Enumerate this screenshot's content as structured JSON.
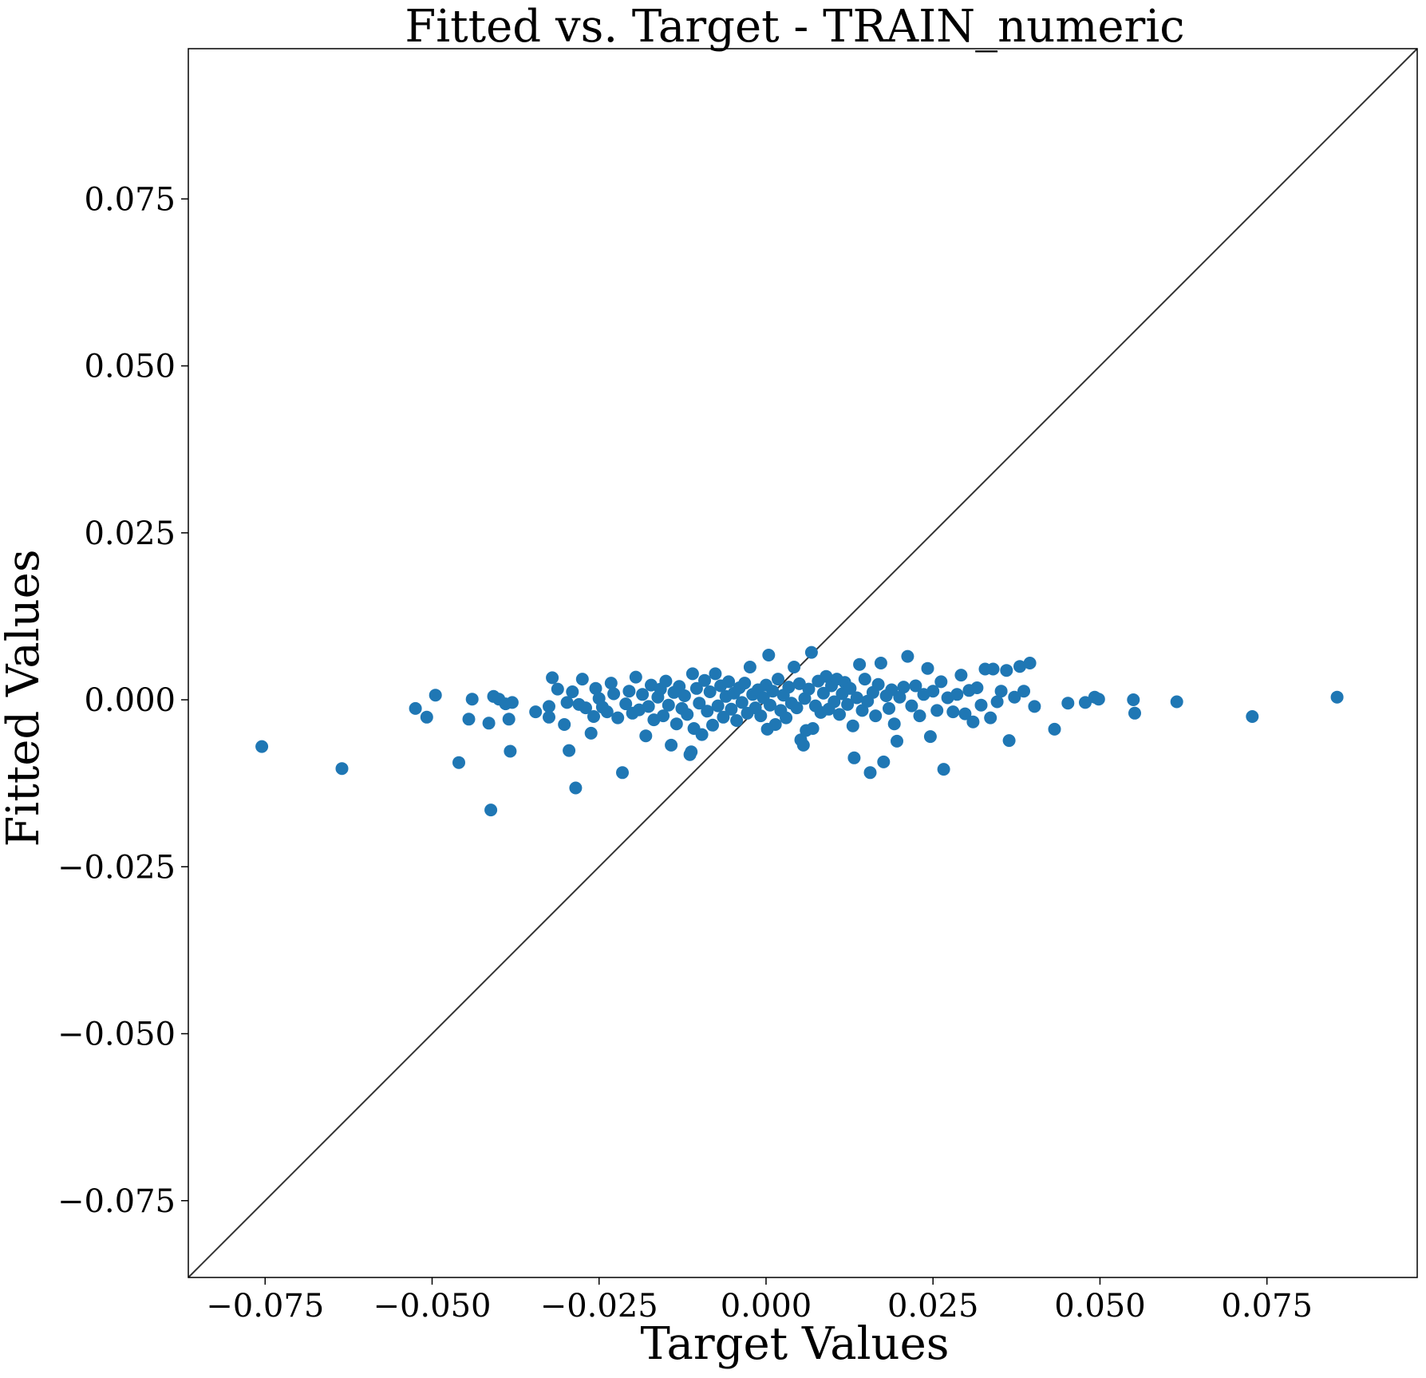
{
  "chart_data": {
    "type": "scatter",
    "title": "Fitted vs. Target - TRAIN_numeric",
    "xlabel": "Target Values",
    "ylabel": "Fitted Values",
    "xlim": [
      -0.0865,
      0.0975
    ],
    "ylim": [
      -0.0865,
      0.0975
    ],
    "xticks": [
      -0.075,
      -0.05,
      -0.025,
      0.0,
      0.025,
      0.05,
      0.075
    ],
    "yticks": [
      -0.075,
      -0.05,
      -0.025,
      0.0,
      0.025,
      0.05,
      0.075
    ],
    "xtick_labels": [
      "−0.075",
      "−0.050",
      "−0.025",
      "0.000",
      "0.025",
      "0.050",
      "0.075"
    ],
    "ytick_labels": [
      "−0.075",
      "−0.050",
      "−0.025",
      "0.000",
      "0.025",
      "0.050",
      "0.075"
    ],
    "grid": false,
    "reference_line": {
      "kind": "identity",
      "slope": 1,
      "intercept": 0
    },
    "colors": {
      "points": "#1f77b4",
      "reference_line": "#333333",
      "axes": "#000000"
    },
    "series": [
      {
        "points": [
          [
            -0.0755,
            -0.007
          ],
          [
            -0.0635,
            -0.0103
          ],
          [
            -0.0525,
            -0.0013
          ],
          [
            -0.0508,
            -0.0026
          ],
          [
            -0.0495,
            0.0007
          ],
          [
            -0.046,
            -0.0094
          ],
          [
            -0.0445,
            -0.0029
          ],
          [
            -0.044,
            0.0001
          ],
          [
            -0.0415,
            -0.0035
          ],
          [
            -0.0412,
            -0.0165
          ],
          [
            -0.0408,
            0.0005
          ],
          [
            -0.04,
            0.0001
          ],
          [
            -0.039,
            -0.0006
          ],
          [
            -0.0385,
            -0.0029
          ],
          [
            -0.0383,
            -0.0077
          ],
          [
            -0.038,
            -0.0004
          ],
          [
            -0.0345,
            -0.0018
          ],
          [
            -0.0325,
            -0.001
          ],
          [
            -0.0325,
            -0.0026
          ],
          [
            -0.032,
            0.0033
          ],
          [
            -0.0312,
            0.0016
          ],
          [
            -0.0302,
            -0.0037
          ],
          [
            -0.0298,
            -0.0004
          ],
          [
            -0.0295,
            -0.0076
          ],
          [
            -0.029,
            0.0012
          ],
          [
            -0.0285,
            -0.0132
          ],
          [
            -0.028,
            -0.0007
          ],
          [
            -0.0275,
            0.0031
          ],
          [
            -0.027,
            -0.0012
          ],
          [
            -0.0262,
            -0.005
          ],
          [
            -0.0258,
            -0.0025
          ],
          [
            -0.0255,
            0.0017
          ],
          [
            -0.025,
            0.0002
          ],
          [
            -0.0245,
            -0.0011
          ],
          [
            -0.0238,
            -0.0018
          ],
          [
            -0.0232,
            0.0025
          ],
          [
            -0.0228,
            0.0009
          ],
          [
            -0.0222,
            -0.0027
          ],
          [
            -0.0215,
            -0.0109
          ],
          [
            -0.021,
            -0.0006
          ],
          [
            -0.0205,
            0.0013
          ],
          [
            -0.02,
            -0.002
          ],
          [
            -0.0195,
            0.0034
          ],
          [
            -0.019,
            -0.0015
          ],
          [
            -0.0185,
            0.0008
          ],
          [
            -0.018,
            -0.0054
          ],
          [
            -0.0176,
            -0.001
          ],
          [
            -0.0172,
            0.0022
          ],
          [
            -0.0168,
            -0.003
          ],
          [
            -0.0162,
            0.0004
          ],
          [
            -0.0158,
            0.0016
          ],
          [
            -0.0154,
            -0.0024
          ],
          [
            -0.015,
            0.0028
          ],
          [
            -0.0146,
            -0.0008
          ],
          [
            -0.0142,
            -0.0068
          ],
          [
            -0.0138,
            0.0011
          ],
          [
            -0.0134,
            -0.0036
          ],
          [
            -0.013,
            0.002
          ],
          [
            -0.0126,
            -0.0013
          ],
          [
            -0.0122,
            0.0006
          ],
          [
            -0.0118,
            -0.0022
          ],
          [
            -0.0114,
            -0.0082
          ],
          [
            -0.0112,
            -0.0078
          ],
          [
            -0.011,
            0.0039
          ],
          [
            -0.0108,
            -0.0043
          ],
          [
            -0.0104,
            0.0017
          ],
          [
            -0.01,
            -0.0005
          ],
          [
            -0.0096,
            -0.0052
          ],
          [
            -0.0092,
            0.0029
          ],
          [
            -0.0088,
            -0.0017
          ],
          [
            -0.0084,
            0.0012
          ],
          [
            -0.008,
            -0.0038
          ],
          [
            -0.0076,
            0.0039
          ],
          [
            -0.0072,
            -0.0009
          ],
          [
            -0.0068,
            0.0021
          ],
          [
            -0.0064,
            -0.0026
          ],
          [
            -0.006,
            0.0005
          ],
          [
            -0.0056,
            0.0027
          ],
          [
            -0.0052,
            -0.0014
          ],
          [
            -0.0048,
            0.001
          ],
          [
            -0.0044,
            -0.0031
          ],
          [
            -0.004,
            0.0018
          ],
          [
            -0.0036,
            -0.0004
          ],
          [
            -0.0032,
            0.0025
          ],
          [
            -0.0028,
            -0.002
          ],
          [
            -0.0024,
            0.0049
          ],
          [
            -0.002,
            0.0008
          ],
          [
            -0.0016,
            -0.0012
          ],
          [
            -0.0012,
            0.0015
          ],
          [
            -0.0008,
            -0.0024
          ],
          [
            -0.0004,
            0.0003
          ],
          [
            0.0,
            0.0022
          ],
          [
            0.0002,
            -0.0044
          ],
          [
            0.0004,
            0.0067
          ],
          [
            0.0006,
            -0.0008
          ],
          [
            0.001,
            0.0013
          ],
          [
            0.0014,
            -0.0037
          ],
          [
            0.0018,
            0.0031
          ],
          [
            0.0022,
            -0.0016
          ],
          [
            0.0026,
            0.0007
          ],
          [
            0.003,
            -0.0027
          ],
          [
            0.0034,
            0.0019
          ],
          [
            0.0038,
            -0.0005
          ],
          [
            0.0042,
            0.0049
          ],
          [
            0.0046,
            -0.0012
          ],
          [
            0.005,
            0.0024
          ],
          [
            0.0052,
            -0.006
          ],
          [
            0.0056,
            -0.0068
          ],
          [
            0.0058,
            0.0002
          ],
          [
            0.006,
            -0.0046
          ],
          [
            0.0064,
            0.0016
          ],
          [
            0.0068,
            0.0071
          ],
          [
            0.007,
            -0.0043
          ],
          [
            0.0074,
            -0.0009
          ],
          [
            0.0078,
            0.0028
          ],
          [
            0.0082,
            -0.0019
          ],
          [
            0.0086,
            0.001
          ],
          [
            0.009,
            0.0035
          ],
          [
            0.0094,
            -0.0014
          ],
          [
            0.0098,
            0.0021
          ],
          [
            0.0102,
            -0.0003
          ],
          [
            0.0106,
            0.0031
          ],
          [
            0.011,
            -0.0022
          ],
          [
            0.0114,
            0.0009
          ],
          [
            0.0118,
            0.0026
          ],
          [
            0.0122,
            -0.0007
          ],
          [
            0.0126,
            0.0017
          ],
          [
            0.013,
            -0.0039
          ],
          [
            0.0132,
            -0.0087
          ],
          [
            0.0136,
            0.0003
          ],
          [
            0.014,
            0.0053
          ],
          [
            0.0144,
            -0.0016
          ],
          [
            0.0148,
            0.0031
          ],
          [
            0.0152,
            -0.0002
          ],
          [
            0.0156,
            -0.0109
          ],
          [
            0.016,
            0.0011
          ],
          [
            0.0164,
            -0.0024
          ],
          [
            0.0168,
            0.0023
          ],
          [
            0.0172,
            0.0055
          ],
          [
            0.0176,
            -0.0093
          ],
          [
            0.018,
            0.0006
          ],
          [
            0.0184,
            -0.0013
          ],
          [
            0.0188,
            0.0015
          ],
          [
            0.0192,
            -0.0036
          ],
          [
            0.0196,
            -0.0062
          ],
          [
            0.02,
            0.0004
          ],
          [
            0.0206,
            0.0019
          ],
          [
            0.0212,
            0.0065
          ],
          [
            0.0218,
            -0.0009
          ],
          [
            0.0224,
            0.0021
          ],
          [
            0.023,
            -0.0024
          ],
          [
            0.0236,
            0.0008
          ],
          [
            0.0242,
            0.0047
          ],
          [
            0.0246,
            -0.0055
          ],
          [
            0.025,
            0.0013
          ],
          [
            0.0256,
            -0.0016
          ],
          [
            0.0262,
            0.0027
          ],
          [
            0.0266,
            -0.0104
          ],
          [
            0.0272,
            0.0003
          ],
          [
            0.028,
            -0.0018
          ],
          [
            0.0286,
            0.0008
          ],
          [
            0.0292,
            0.0037
          ],
          [
            0.0298,
            -0.0021
          ],
          [
            0.0304,
            0.0014
          ],
          [
            0.031,
            -0.0033
          ],
          [
            0.0316,
            0.0018
          ],
          [
            0.0322,
            -0.0008
          ],
          [
            0.0328,
            0.0046
          ],
          [
            0.0336,
            -0.0027
          ],
          [
            0.034,
            0.0046
          ],
          [
            0.0346,
            -0.0003
          ],
          [
            0.0352,
            0.0013
          ],
          [
            0.036,
            0.0044
          ],
          [
            0.0364,
            -0.0061
          ],
          [
            0.0372,
            0.0004
          ],
          [
            0.038,
            0.005
          ],
          [
            0.0386,
            0.0013
          ],
          [
            0.0395,
            0.0055
          ],
          [
            0.0402,
            -0.001
          ],
          [
            0.0432,
            -0.0044
          ],
          [
            0.0452,
            -0.0005
          ],
          [
            0.0478,
            -0.0004
          ],
          [
            0.0492,
            0.0004
          ],
          [
            0.0498,
            0.0001
          ],
          [
            0.055,
            0.0
          ],
          [
            0.0552,
            -0.002
          ],
          [
            0.0615,
            -0.0003
          ],
          [
            0.0728,
            -0.0025
          ],
          [
            0.0855,
            0.0004
          ]
        ]
      }
    ]
  }
}
